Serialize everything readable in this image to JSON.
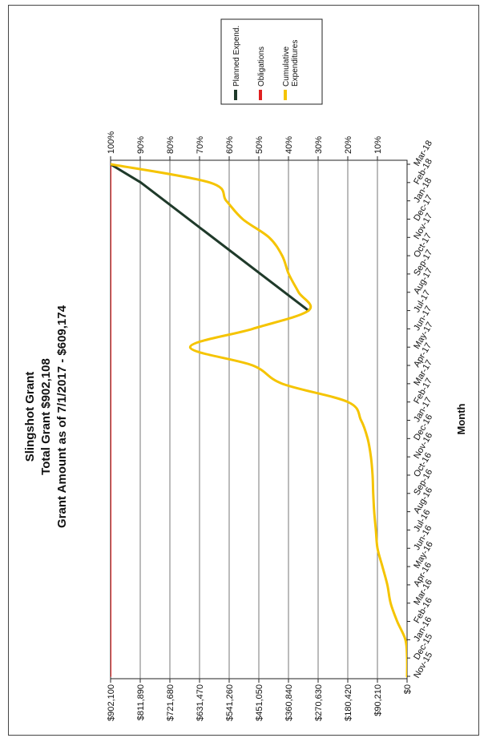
{
  "chart_data": {
    "type": "line",
    "title": "Slingshot Grant",
    "subtitle_lines": [
      "Total Grant  $902,108",
      "Grant Amount as of 7/1/2017 - $609,174"
    ],
    "xlabel": "Month",
    "ylabel": "",
    "categories": [
      "Nov-15",
      "Dec-15",
      "Jan-16",
      "Feb-16",
      "Mar-16",
      "Apr-16",
      "May-16",
      "Jun-16",
      "Jul-16",
      "Aug-16",
      "Sep-16",
      "Oct-16",
      "Nov-16",
      "Dec-16",
      "Jan-17",
      "Feb-17",
      "Mar-17",
      "Apr-17",
      "May-17",
      "Jun-17",
      "Jul-17",
      "Aug-17",
      "Sep-17",
      "Oct-17",
      "Nov-17",
      "Dec-17",
      "Jan-18",
      "Feb-18",
      "Mar-18"
    ],
    "y_ticks": [
      "$0",
      "$90,210",
      "$180,420",
      "$270,630",
      "$360,840",
      "$451,050",
      "$541,260",
      "$631,470",
      "$721,680",
      "$811,890",
      "$902,100"
    ],
    "y2_ticks": [
      "",
      "10%",
      "20%",
      "30%",
      "40%",
      "50%",
      "60%",
      "70%",
      "80%",
      "90%",
      "100%"
    ],
    "ylim": [
      0,
      902100
    ],
    "grid": true,
    "legend_position": "top-right",
    "orientation": "rotated-90-ccw",
    "series": [
      {
        "name": "Planned Expend.",
        "color": "#1f3a2a",
        "x": [
          "Jul-17",
          "Feb-18",
          "Mar-18"
        ],
        "values": [
          300000,
          810000,
          902000
        ]
      },
      {
        "name": "Obligations",
        "color": "#e02020",
        "x": [
          "Nov-15",
          "Mar-18"
        ],
        "values": [
          902100,
          902100
        ]
      },
      {
        "name": "Cumulative\nExpenditures",
        "color": "#f5c400",
        "x": [
          "Nov-15",
          "Dec-15",
          "Jan-16",
          "Feb-16",
          "Mar-16",
          "Apr-16",
          "May-16",
          "Jun-16",
          "Jul-16",
          "Aug-16",
          "Sep-16",
          "Oct-16",
          "Nov-16",
          "Dec-16",
          "Jan-17",
          "Feb-17",
          "Mar-17",
          "Apr-17",
          "May-17",
          "Jun-17",
          "Jul-17",
          "Aug-17",
          "Sep-17",
          "Oct-17",
          "Nov-17",
          "Dec-17",
          "Jan-18",
          "Feb-18",
          "Mar-18"
        ],
        "values": [
          0,
          0,
          5000,
          30000,
          50000,
          60000,
          75000,
          90000,
          95000,
          100000,
          103000,
          105000,
          110000,
          120000,
          140000,
          180000,
          380000,
          470000,
          660000,
          470000,
          300000,
          330000,
          360000,
          380000,
          420000,
          500000,
          550000,
          600000,
          902000
        ]
      }
    ]
  }
}
